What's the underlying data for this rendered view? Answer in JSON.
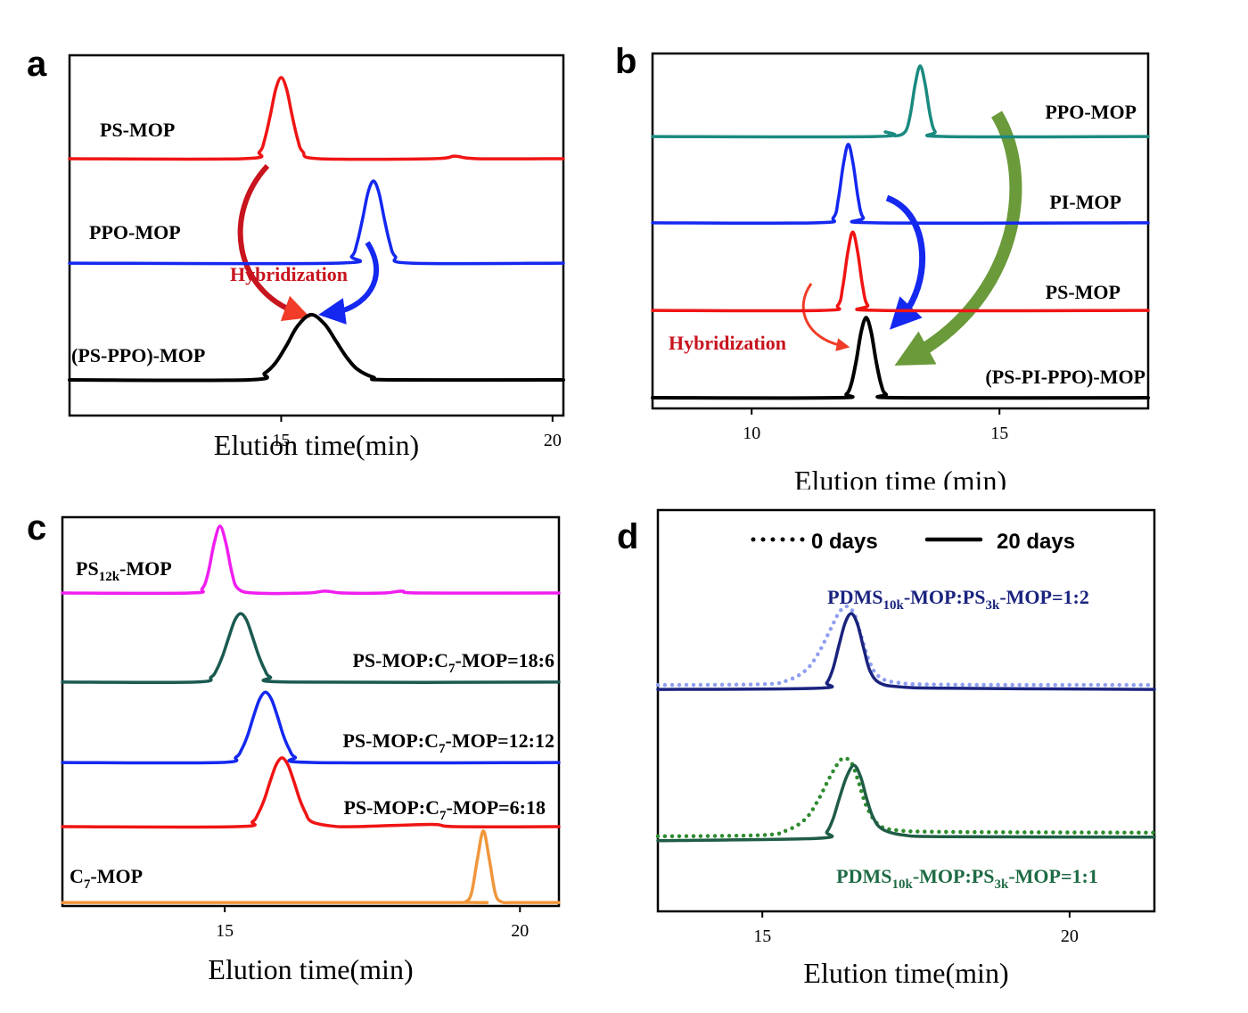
{
  "chart_data": [
    {
      "type": "line",
      "panel": "a",
      "xlabel": "Elution time(min)",
      "xlim": [
        11.1,
        20.2
      ],
      "xticks": [
        15,
        20
      ],
      "ylim": [
        0,
        100
      ],
      "annotations": [
        {
          "text": "Hybridization",
          "color": "#c8141e"
        }
      ],
      "series": [
        {
          "name": [
            "PS-MOP"
          ],
          "color": "#f01414",
          "dash": "solid",
          "x": [
            11.1,
            14.3,
            14.6,
            14.7,
            14.8,
            14.9,
            15.0,
            15.1,
            15.2,
            15.3,
            15.4,
            15.7,
            17.8,
            18.2,
            18.6,
            20.2
          ],
          "values": [
            71.3,
            71.3,
            73.2,
            76.9,
            83.4,
            90.6,
            93.8,
            90.6,
            83.4,
            76.9,
            73.2,
            71.3,
            71.3,
            72.0,
            71.3,
            71.3
          ]
        },
        {
          "name": [
            "PPO-MOP"
          ],
          "color": "#1428f0",
          "dash": "solid",
          "x": [
            11.1,
            16.0,
            16.3,
            16.4,
            16.5,
            16.6,
            16.7,
            16.8,
            16.9,
            17.0,
            17.1,
            17.4,
            20.2
          ],
          "values": [
            42.3,
            42.3,
            44.2,
            48.0,
            54.6,
            61.9,
            65.1,
            61.9,
            54.6,
            48.0,
            44.2,
            42.3,
            42.3
          ]
        },
        {
          "name": [
            "(PS-PPO)-MOP"
          ],
          "color": "#000000",
          "dash": "solid",
          "x": [
            11.1,
            14.4,
            14.7,
            14.9,
            15.1,
            15.3,
            15.55,
            15.8,
            16.0,
            16.2,
            16.4,
            16.7,
            17.0,
            20.2
          ],
          "values": [
            9.9,
            9.9,
            11.8,
            14.7,
            19.5,
            24.8,
            28.0,
            25.4,
            20.9,
            16.3,
            12.9,
            10.6,
            9.9,
            9.9
          ]
        }
      ]
    },
    {
      "type": "line",
      "panel": "b",
      "xlabel": "Elution time (min)",
      "xlim": [
        8,
        18
      ],
      "xticks": [
        10,
        15
      ],
      "ylim": [
        0,
        100
      ],
      "annotations": [
        {
          "text": "Hybridization",
          "color": "#c8141e"
        }
      ],
      "series": [
        {
          "name": [
            "PPO-MOP"
          ],
          "color": "#1a8a80",
          "dash": "solid",
          "x": [
            8,
            12.5,
            12.7,
            12.9,
            13.1,
            13.2,
            13.3,
            13.4,
            13.5,
            13.6,
            13.7,
            13.9,
            18
          ],
          "values": [
            76.6,
            76.6,
            77.9,
            76.8,
            78.0,
            82.7,
            91.4,
            96.5,
            91.4,
            82.7,
            78.0,
            76.6,
            76.6
          ]
        },
        {
          "name": [
            "PI-MOP"
          ],
          "color": "#1428f0",
          "dash": "solid",
          "x": [
            8,
            11.3,
            11.65,
            11.75,
            11.85,
            11.95,
            12.05,
            12.15,
            12.25,
            12.5,
            18
          ],
          "values": [
            52.3,
            52.3,
            53.8,
            59.1,
            68.7,
            74.4,
            68.7,
            59.1,
            53.8,
            52.3,
            52.3
          ]
        },
        {
          "name": [
            "PS-MOP"
          ],
          "color": "#f01414",
          "dash": "solid",
          "x": [
            8,
            11.4,
            11.74,
            11.84,
            11.94,
            12.04,
            12.14,
            12.24,
            12.34,
            12.6,
            18
          ],
          "values": [
            27.6,
            27.6,
            29.1,
            34.4,
            44.0,
            49.7,
            44.0,
            34.4,
            29.1,
            27.6,
            27.6
          ]
        },
        {
          "name": [
            "(PS-PI-PPO)-MOP"
          ],
          "color": "#000000",
          "dash": "solid",
          "x": [
            8,
            11.7,
            11.91,
            12.01,
            12.11,
            12.21,
            12.31,
            12.41,
            12.51,
            12.61,
            12.71,
            13.0,
            18
          ],
          "values": [
            3.0,
            3.0,
            4.0,
            6.9,
            13.4,
            21.6,
            25.6,
            21.6,
            13.4,
            6.9,
            4.0,
            3.0,
            3.0
          ]
        }
      ]
    },
    {
      "type": "line",
      "panel": "c",
      "xlabel": "Elution time(min)",
      "xlim": [
        12.25,
        20.66
      ],
      "xticks": [
        15,
        20
      ],
      "ylim": [
        0,
        100
      ],
      "series": [
        {
          "name": [
            "PS",
            "12k",
            "-MOP"
          ],
          "color": "#f01ef0",
          "dash": "solid",
          "x": [
            12.25,
            14.4,
            14.62,
            14.72,
            14.82,
            14.92,
            15.02,
            15.12,
            15.22,
            15.5,
            16.4,
            16.7,
            17.0,
            17.7,
            18.0,
            18.3,
            20.66
          ],
          "values": [
            80.5,
            80.5,
            81.7,
            85.8,
            93.3,
            97.7,
            93.3,
            85.8,
            81.7,
            80.5,
            80.5,
            81.0,
            80.5,
            80.5,
            81.0,
            80.5,
            80.5
          ]
        },
        {
          "name": [
            "PS-MOP:C",
            "7",
            "-MOP=18:6"
          ],
          "color": "#1a5a50",
          "dash": "solid",
          "x": [
            12.25,
            14.5,
            14.77,
            14.87,
            14.97,
            15.07,
            15.17,
            15.27,
            15.37,
            15.47,
            15.57,
            15.67,
            15.77,
            16.1,
            20.66
          ],
          "values": [
            57.6,
            57.6,
            58.9,
            61.0,
            64.6,
            69.2,
            73.5,
            75.2,
            73.5,
            69.2,
            64.6,
            61.0,
            58.9,
            57.6,
            57.6
          ]
        },
        {
          "name": [
            "PS-MOP:C",
            "7",
            "-MOP=12:12"
          ],
          "color": "#1428f0",
          "dash": "solid",
          "x": [
            12.25,
            14.9,
            15.19,
            15.29,
            15.39,
            15.49,
            15.59,
            15.69,
            15.79,
            15.89,
            15.99,
            16.09,
            16.19,
            16.5,
            20.66
          ],
          "values": [
            36.9,
            36.9,
            38.3,
            40.4,
            44.0,
            48.9,
            53.2,
            55.0,
            53.2,
            48.9,
            44.0,
            40.4,
            38.3,
            36.9,
            36.9
          ]
        },
        {
          "name": [
            "PS-MOP:C",
            "7",
            "-MOP=6:18"
          ],
          "color": "#f01414",
          "dash": "solid",
          "x": [
            12.25,
            15.2,
            15.47,
            15.57,
            15.67,
            15.77,
            15.87,
            15.97,
            16.07,
            16.17,
            16.27,
            16.37,
            16.47,
            16.8,
            17.2,
            18.5,
            18.9,
            20.66
          ],
          "values": [
            20.4,
            20.4,
            21.7,
            23.9,
            27.4,
            32.1,
            36.3,
            38.1,
            36.3,
            32.1,
            27.4,
            23.9,
            21.7,
            20.6,
            20.4,
            21.0,
            20.4,
            20.4
          ]
        },
        {
          "name": [
            "C",
            "7",
            "-MOP"
          ],
          "color": "#f0963c",
          "dash": "solid",
          "x": [
            12.25,
            18.9,
            19.08,
            19.18,
            19.28,
            19.38,
            19.48,
            19.58,
            19.68,
            19.9,
            20.66
          ],
          "values": [
            0.9,
            0.9,
            1.1,
            3.4,
            12.1,
            19.3,
            12.1,
            3.4,
            1.1,
            0.9,
            0.9
          ]
        }
      ]
    },
    {
      "type": "line",
      "panel": "d",
      "xlabel": "Elution time(min)",
      "xlim": [
        13.3,
        21.38
      ],
      "xticks": [
        15,
        20
      ],
      "ylim": [
        0,
        100
      ],
      "annotations": [
        {
          "text": [
            "PDMS",
            "10k",
            "-MOP:PS",
            "3k",
            "-MOP=1:2"
          ],
          "color": "#1a237e"
        },
        {
          "text": [
            "PDMS",
            "10k",
            "-MOP:PS",
            "3k",
            "-MOP=1:1"
          ],
          "color": "#1f6b45"
        }
      ],
      "series": [
        {
          "name": "0 days",
          "color": "#8f9ff0",
          "dash": "dotted",
          "x": [
            13.3,
            15.0,
            15.4,
            15.7,
            15.9,
            16.1,
            16.25,
            16.38,
            16.5,
            16.6,
            16.75,
            16.9,
            17.2,
            18.0,
            21.38
          ],
          "values": [
            56.4,
            56.6,
            57.5,
            60.0,
            64.0,
            70.0,
            74.5,
            76.0,
            74.0,
            69.0,
            62.0,
            58.5,
            57.0,
            56.5,
            56.4
          ]
        },
        {
          "name": "20 days",
          "color": "#1a237e",
          "dash": "solid",
          "x": [
            13.3,
            15.9,
            16.05,
            16.15,
            16.25,
            16.35,
            16.45,
            16.55,
            16.65,
            16.75,
            16.9,
            17.2,
            18.0,
            21.38
          ],
          "values": [
            55.3,
            55.6,
            57.0,
            60.5,
            66.5,
            72.0,
            74.2,
            71.5,
            65.5,
            60.0,
            57.0,
            56.0,
            55.6,
            55.3
          ]
        },
        {
          "name": "0 days",
          "color": "#2e8b2e",
          "dash": "dotted",
          "x": [
            13.3,
            15.0,
            15.4,
            15.7,
            15.9,
            16.1,
            16.25,
            16.34,
            16.45,
            16.55,
            16.7,
            16.9,
            17.2,
            18.0,
            21.38
          ],
          "values": [
            18.7,
            19.0,
            20.2,
            23.0,
            27.5,
            33.5,
            37.3,
            38.2,
            37.0,
            33.0,
            26.0,
            21.5,
            20.2,
            19.8,
            19.6
          ]
        },
        {
          "name": "20 days",
          "color": "#1f5c45",
          "dash": "solid",
          "x": [
            13.3,
            15.9,
            16.05,
            16.15,
            16.25,
            16.37,
            16.49,
            16.6,
            16.7,
            16.8,
            16.95,
            17.3,
            18.0,
            21.38
          ],
          "values": [
            17.6,
            18.2,
            19.8,
            23.0,
            28.0,
            33.5,
            36.4,
            33.5,
            28.0,
            23.5,
            20.5,
            19.0,
            18.6,
            18.5
          ]
        }
      ]
    }
  ]
}
